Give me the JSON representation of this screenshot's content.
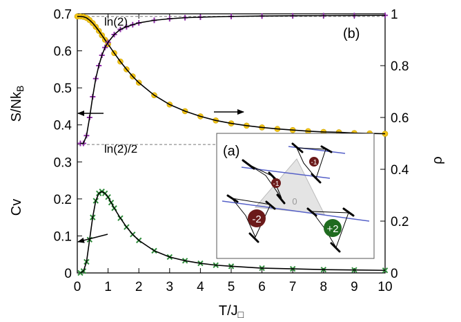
{
  "chart_data": {
    "type": "line",
    "panel_label": "(b)",
    "inset_label": "(a)",
    "x_axis": {
      "label_main": "T/J",
      "label_sub": "□",
      "range": [
        0,
        10
      ],
      "ticks": [
        "0",
        "1",
        "2",
        "3",
        "4",
        "5",
        "6",
        "7",
        "8",
        "9",
        "10"
      ]
    },
    "y_left": {
      "label_upper": "S/Nk",
      "label_upper_sub": "B",
      "label_lower": "Cv",
      "range": [
        0,
        0.7
      ],
      "ticks": [
        "0",
        "0.1",
        "0.2",
        "0.3",
        "0.4",
        "0.5",
        "0.6",
        "0.7"
      ]
    },
    "y_right": {
      "label": "ρ",
      "range": [
        0,
        1
      ],
      "ticks": [
        "0",
        "0.2",
        "0.4",
        "0.6",
        "0.8",
        "1"
      ]
    },
    "reference_lines": [
      {
        "label": "ln(2)",
        "y": 0.693
      },
      {
        "label": "ln(2)/2",
        "y": 0.347
      }
    ],
    "series": [
      {
        "axis": "left",
        "marker": "circle",
        "color": "#f2c418",
        "x": [
          0,
          0.1,
          0.2,
          0.3,
          0.4,
          0.5,
          0.6,
          0.7,
          0.8,
          0.9,
          1.0,
          1.2,
          1.4,
          1.6,
          1.8,
          2.0,
          2.5,
          3.0,
          3.5,
          4.0,
          4.5,
          5.0,
          5.5,
          6.0,
          6.5,
          7.0,
          7.5,
          8.0,
          8.5,
          9.0,
          9.5,
          10.0
        ],
        "y": [
          0.693,
          0.693,
          0.692,
          0.689,
          0.683,
          0.675,
          0.665,
          0.654,
          0.642,
          0.63,
          0.618,
          0.594,
          0.571,
          0.55,
          0.531,
          0.514,
          0.48,
          0.455,
          0.437,
          0.423,
          0.412,
          0.404,
          0.398,
          0.393,
          0.389,
          0.386,
          0.383,
          0.381,
          0.38,
          0.378,
          0.377,
          0.376
        ]
      },
      {
        "axis": "right",
        "marker": "plus",
        "color": "#8e2ca8",
        "x": [
          0.1,
          0.2,
          0.3,
          0.4,
          0.5,
          0.6,
          0.7,
          0.8,
          0.9,
          1.0,
          1.2,
          1.4,
          1.6,
          1.8,
          2.0,
          2.5,
          3.0,
          3.5,
          4.0,
          5.0,
          6.0,
          7.0,
          8.0,
          9.0,
          10.0
        ],
        "y": [
          0.5,
          0.5,
          0.53,
          0.6,
          0.68,
          0.75,
          0.8,
          0.84,
          0.87,
          0.89,
          0.92,
          0.94,
          0.95,
          0.958,
          0.965,
          0.975,
          0.981,
          0.985,
          0.987,
          0.99,
          0.9915,
          0.9925,
          0.993,
          0.9935,
          0.994
        ]
      },
      {
        "axis": "left",
        "marker": "x",
        "color": "#2e8b3a",
        "x": [
          0.1,
          0.2,
          0.3,
          0.4,
          0.5,
          0.6,
          0.7,
          0.8,
          0.9,
          1.0,
          1.1,
          1.2,
          1.4,
          1.6,
          1.8,
          2.0,
          2.5,
          3.0,
          3.5,
          4.0,
          4.5,
          5.0,
          6.0,
          7.0,
          8.0,
          9.0,
          10.0
        ],
        "y": [
          0.0,
          0.005,
          0.03,
          0.09,
          0.15,
          0.195,
          0.215,
          0.22,
          0.215,
          0.205,
          0.19,
          0.175,
          0.148,
          0.124,
          0.104,
          0.088,
          0.06,
          0.043,
          0.033,
          0.026,
          0.021,
          0.018,
          0.013,
          0.011,
          0.009,
          0.008,
          0.007
        ]
      }
    ],
    "arrows": [
      {
        "direction": "left",
        "target_axis": "left"
      },
      {
        "direction": "right",
        "target_axis": "right"
      },
      {
        "direction": "left",
        "target_axis": "left"
      }
    ],
    "inset": {
      "site_labels": [
        "-1",
        "-1",
        "0",
        "-2",
        "+2"
      ]
    }
  }
}
